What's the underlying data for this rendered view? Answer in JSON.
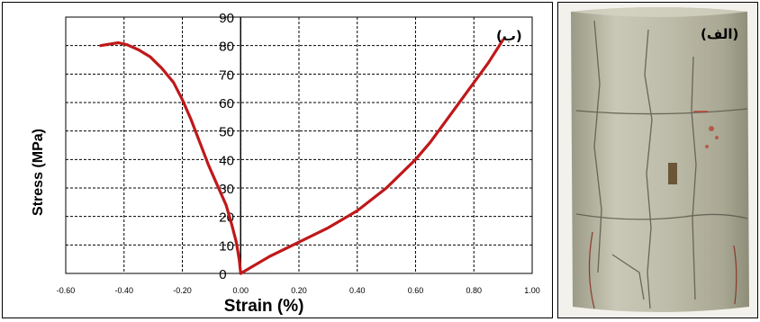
{
  "panels": {
    "chart_label": "(ب)",
    "photo_label": "(الف)"
  },
  "chart_data": {
    "type": "line",
    "xlabel": "Strain (%)",
    "ylabel": "Stress (MPa)",
    "xlim": [
      -0.6,
      1.0
    ],
    "ylim": [
      0,
      90
    ],
    "x_ticks": [
      "-0.60",
      "-0.40",
      "-0.20",
      "0.00",
      "0.20",
      "0.40",
      "0.60",
      "0.80",
      "1.00"
    ],
    "y_ticks": [
      "0",
      "10",
      "20",
      "30",
      "40",
      "50",
      "60",
      "70",
      "80",
      "90"
    ],
    "grid": true,
    "line_color": "#c0181a",
    "series": [
      {
        "x": [
          -0.48,
          -0.45,
          -0.42,
          -0.39,
          -0.35,
          -0.31,
          -0.27,
          -0.23,
          -0.2,
          -0.17,
          -0.14,
          -0.11,
          -0.08,
          -0.05,
          -0.03,
          -0.015,
          -0.005,
          0.0
        ],
        "y": [
          80,
          80.5,
          81,
          80.3,
          78.5,
          76,
          72,
          67,
          61,
          54,
          46,
          38,
          31,
          24,
          17,
          11,
          5,
          0
        ]
      },
      {
        "x": [
          0.0,
          0.05,
          0.1,
          0.2,
          0.3,
          0.4,
          0.5,
          0.6,
          0.65,
          0.7,
          0.75,
          0.8,
          0.85,
          0.9
        ],
        "y": [
          0,
          3,
          6,
          11,
          16,
          22,
          30,
          40,
          46,
          53,
          60,
          67,
          74,
          82
        ]
      }
    ]
  }
}
